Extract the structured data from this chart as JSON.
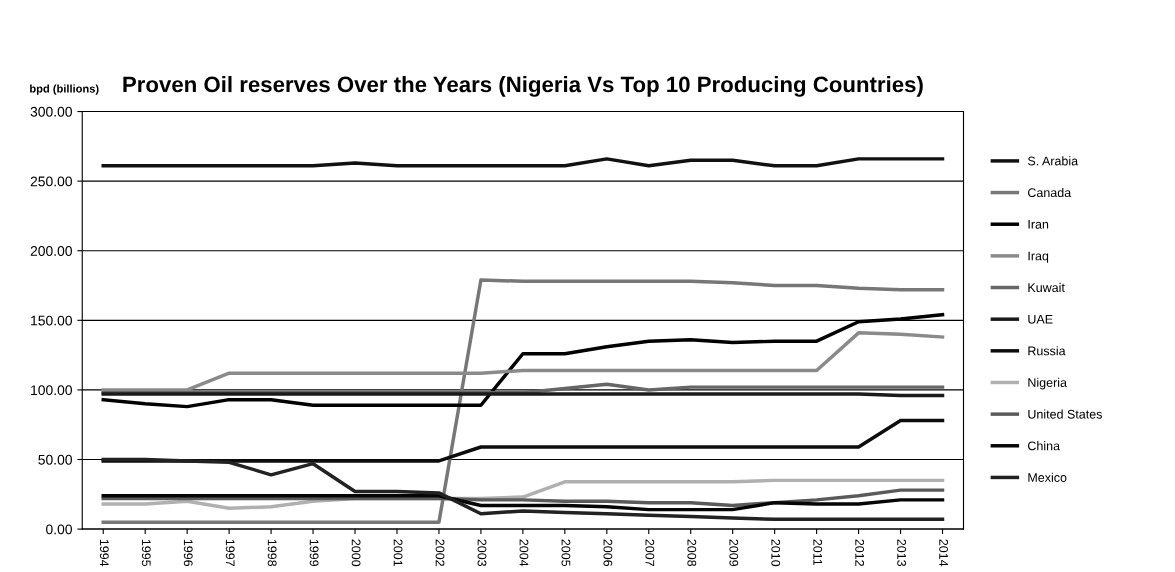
{
  "chart_data": {
    "type": "line",
    "title": "Proven Oil reserves Over the Years (Nigeria Vs Top 10 Producing Countries)",
    "ylabel": "bpd (billions)",
    "categories": [
      "1994",
      "1995",
      "1996",
      "1997",
      "1998",
      "1999",
      "2000",
      "2001",
      "2002",
      "2003",
      "2004",
      "2005",
      "2006",
      "2007",
      "2008",
      "2009",
      "2010",
      "2011",
      "2012",
      "2013",
      "2014"
    ],
    "series": [
      {
        "name": "S. Arabia",
        "color": "#111111",
        "values": [
          261,
          261,
          261,
          261,
          261,
          261,
          263,
          261,
          261,
          261,
          261,
          261,
          266,
          261,
          265,
          265,
          261,
          261,
          266,
          266,
          266
        ]
      },
      {
        "name": "Canada",
        "color": "#777777",
        "values": [
          5,
          5,
          5,
          5,
          5,
          5,
          5,
          5,
          5,
          179,
          178,
          178,
          178,
          178,
          178,
          177,
          175,
          175,
          173,
          172,
          172
        ]
      },
      {
        "name": "Iran",
        "color": "#000000",
        "values": [
          93,
          90,
          88,
          93,
          93,
          89,
          89,
          89,
          89,
          89,
          126,
          126,
          131,
          135,
          136,
          134,
          135,
          135,
          149,
          151,
          154
        ]
      },
      {
        "name": "Iraq",
        "color": "#8a8a8a",
        "values": [
          100,
          100,
          100,
          112,
          112,
          112,
          112,
          112,
          112,
          112,
          114,
          114,
          114,
          114,
          114,
          114,
          114,
          114,
          141,
          140,
          138
        ]
      },
      {
        "name": "Kuwait",
        "color": "#666666",
        "values": [
          98,
          98,
          98,
          98,
          98,
          98,
          98,
          98,
          98,
          98,
          98,
          101,
          104,
          100,
          102,
          102,
          102,
          102,
          102,
          102,
          102
        ]
      },
      {
        "name": "UAE",
        "color": "#1a1a1a",
        "values": [
          97,
          97,
          97,
          97,
          97,
          97,
          97,
          97,
          97,
          97,
          97,
          97,
          97,
          97,
          97,
          97,
          97,
          97,
          97,
          96,
          96
        ]
      },
      {
        "name": "Russia",
        "color": "#0d0d0d",
        "values": [
          49,
          49,
          49,
          49,
          49,
          49,
          49,
          49,
          49,
          59,
          59,
          59,
          59,
          59,
          59,
          59,
          59,
          59,
          59,
          78,
          78
        ]
      },
      {
        "name": "Nigeria",
        "color": "#b0b0b0",
        "values": [
          18,
          18,
          20,
          15,
          16,
          20,
          22,
          22,
          22,
          22,
          23,
          34,
          34,
          34,
          34,
          34,
          35,
          35,
          35,
          35,
          35
        ]
      },
      {
        "name": "United States",
        "color": "#5a5a5a",
        "values": [
          22,
          22,
          22,
          22,
          22,
          22,
          22,
          22,
          22,
          21,
          21,
          20,
          20,
          19,
          19,
          17,
          19,
          21,
          24,
          28,
          28
        ]
      },
      {
        "name": "China",
        "color": "#050505",
        "values": [
          24,
          24,
          24,
          24,
          24,
          24,
          24,
          24,
          24,
          17,
          17,
          17,
          16,
          14,
          14,
          14,
          19,
          18,
          18,
          21,
          21
        ]
      },
      {
        "name": "Mexico",
        "color": "#222222",
        "values": [
          50,
          50,
          49,
          48,
          39,
          47,
          27,
          27,
          26,
          11,
          13,
          12,
          11,
          10,
          9,
          8,
          7,
          7,
          7,
          7,
          7
        ]
      }
    ],
    "ylim": [
      0,
      300
    ],
    "yticks": [
      {
        "value": 0,
        "label": "0.00"
      },
      {
        "value": 50,
        "label": "50.00"
      },
      {
        "value": 100,
        "label": "100.00"
      },
      {
        "value": 150,
        "label": "150.00"
      },
      {
        "value": 200,
        "label": "200.00"
      },
      {
        "value": 250,
        "label": "250.00"
      },
      {
        "value": 300,
        "label": "300.00"
      }
    ],
    "grid": "y",
    "legend": "right",
    "line_style": "solid"
  }
}
